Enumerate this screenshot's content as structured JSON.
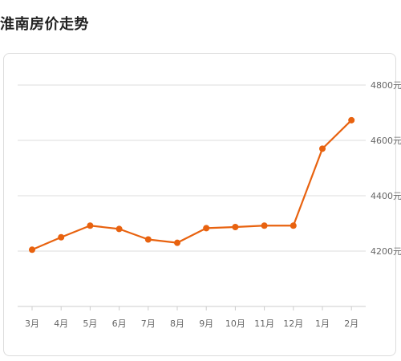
{
  "page": {
    "title": "淮南房价走势"
  },
  "chart_data": {
    "type": "line",
    "title": "淮南房价走势",
    "xlabel": "",
    "ylabel": "",
    "categories": [
      "3月",
      "4月",
      "5月",
      "6月",
      "7月",
      "8月",
      "9月",
      "10月",
      "11月",
      "12月",
      "1月",
      "2月"
    ],
    "series": [
      {
        "values": [
          4205,
          4250,
          4292,
          4280,
          4242,
          4230,
          4283,
          4287,
          4292,
          4292,
          4570,
          4673
        ],
        "color": "#e8620f"
      }
    ],
    "y_ticks": [
      {
        "value": 4200,
        "label": "4200元"
      },
      {
        "value": 4400,
        "label": "4400元"
      },
      {
        "value": 4600,
        "label": "4600元"
      },
      {
        "value": 4800,
        "label": "4800元"
      }
    ],
    "ylim": [
      4000,
      4800
    ],
    "grid": true,
    "y_axis_position": "right",
    "legend": "none",
    "colors": {
      "line": "#e8620f",
      "grid": "#dddddd",
      "axis": "#cccccc",
      "tick_text": "#666666"
    }
  }
}
